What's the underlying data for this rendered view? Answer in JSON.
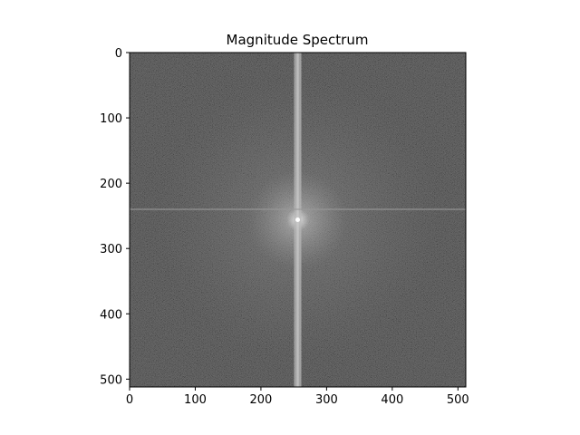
{
  "chart_data": {
    "type": "heatmap",
    "title": "Magnitude Spectrum",
    "xlabel": "",
    "ylabel": "",
    "xlim": [
      0,
      512
    ],
    "ylim": [
      512,
      0
    ],
    "x_ticks": [
      0,
      100,
      200,
      300,
      400,
      500
    ],
    "y_ticks": [
      0,
      100,
      200,
      300,
      400,
      500
    ],
    "image_size": [
      512,
      512
    ],
    "colormap": "gray",
    "spectrum_center": [
      256,
      256
    ],
    "horizontal_bright_line_y": 240,
    "vertical_bright_line_x": 256,
    "background_level": 0.33,
    "grid": false
  }
}
